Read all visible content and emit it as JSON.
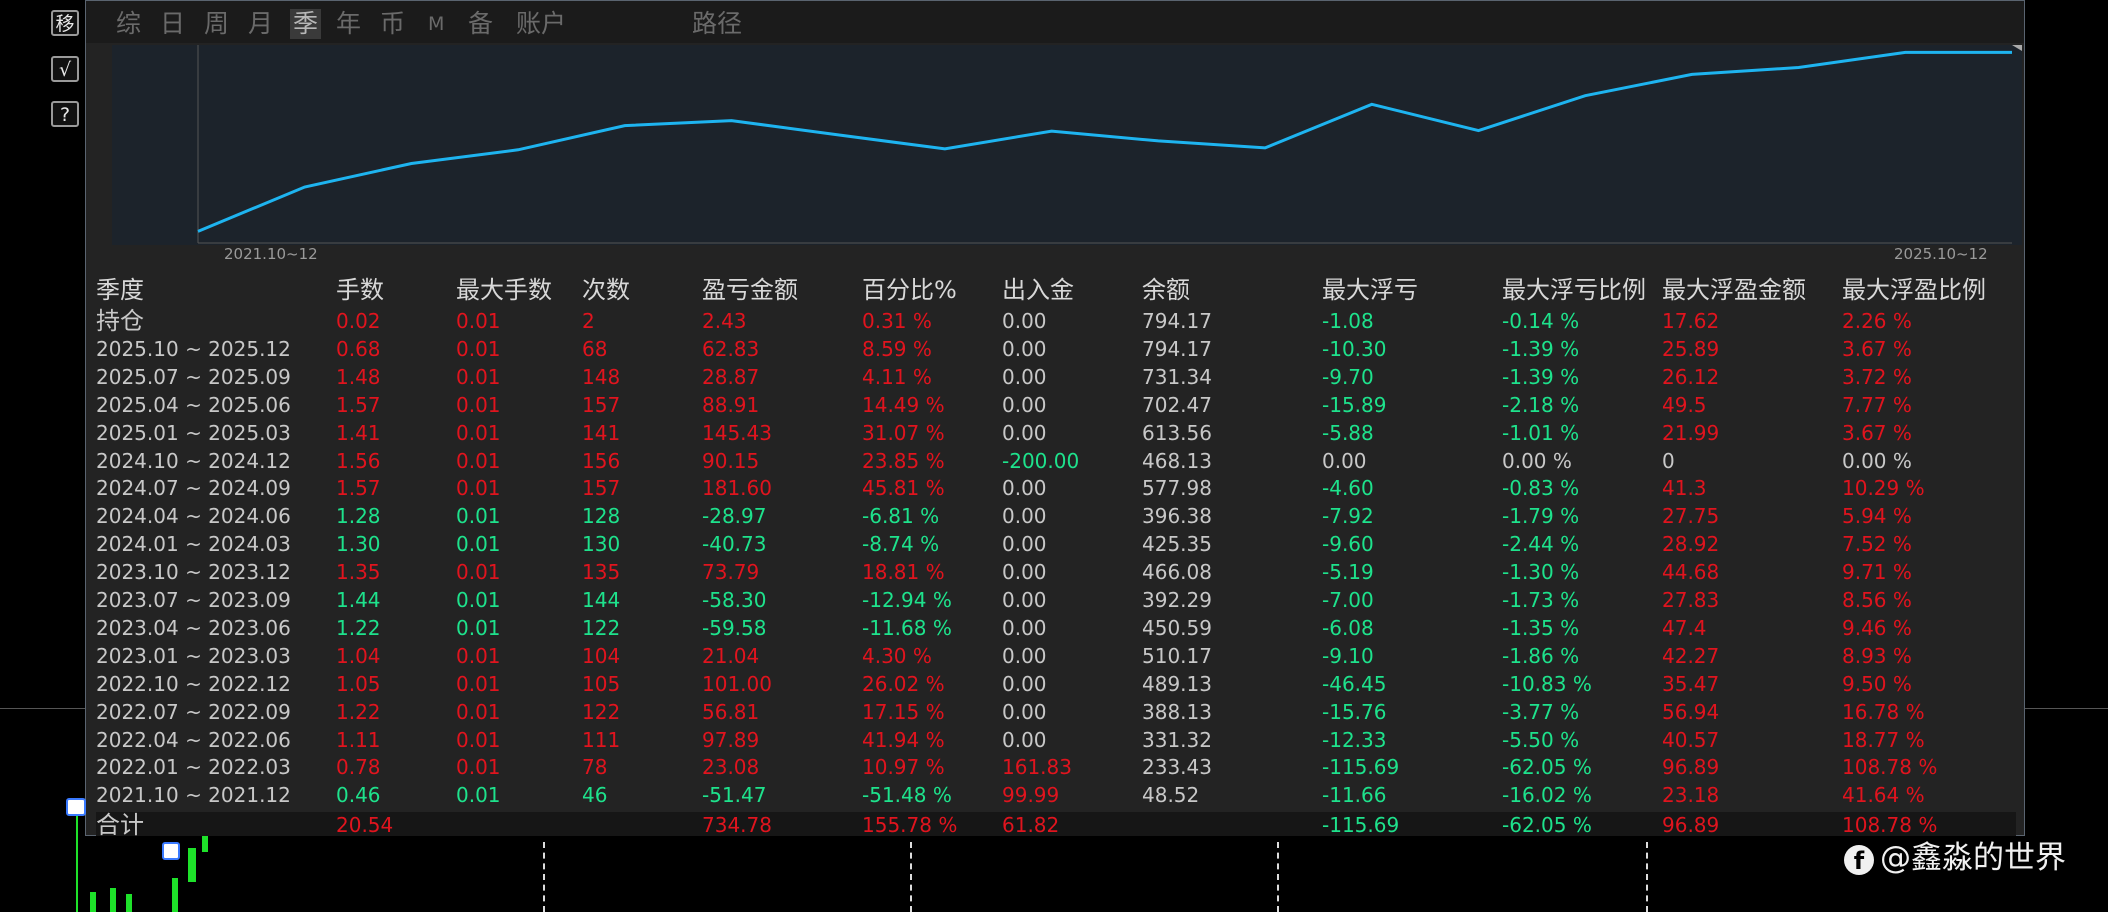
{
  "sidebar": {
    "buttons": [
      "移",
      "√",
      "?"
    ]
  },
  "toolbar": {
    "items": [
      "综",
      "日",
      "周",
      "月",
      "季",
      "年",
      "币",
      "M",
      "备",
      "账户",
      "路径"
    ],
    "active": "季"
  },
  "chart_data": {
    "type": "line",
    "start_label": "2021.10~12",
    "end_label": "2025.10~12",
    "color": "#1eb4f0",
    "x": [
      "2021.10",
      "2022.01",
      "2022.04",
      "2022.07",
      "2022.10",
      "2023.01",
      "2023.04",
      "2023.07",
      "2023.10",
      "2024.01",
      "2024.04",
      "2024.07",
      "2024.10",
      "2025.01",
      "2025.04",
      "2025.07",
      "2025.10",
      "持仓"
    ],
    "values": [
      48.52,
      233.43,
      331.32,
      388.13,
      489.13,
      510.17,
      450.59,
      392.29,
      466.08,
      425.35,
      396.38,
      577.98,
      468.13,
      613.56,
      702.47,
      731.34,
      794.17,
      794.17
    ],
    "ylim": [
      0,
      800
    ]
  },
  "table": {
    "headers": [
      "季度",
      "手数",
      "最大手数",
      "次数",
      "盈亏金额",
      "百分比%",
      "出入金",
      "余额",
      "最大浮亏",
      "最大浮亏比例",
      "最大浮盈金额",
      "最大浮盈比例"
    ],
    "rows": [
      [
        "持仓",
        "0.02",
        "0.01",
        "2",
        "2.43",
        "0.31 %",
        "0.00",
        "794.17",
        "-1.08",
        "-0.14 %",
        "17.62",
        "2.26 %"
      ],
      [
        "2025.10 ~ 2025.12",
        "0.68",
        "0.01",
        "68",
        "62.83",
        "8.59 %",
        "0.00",
        "794.17",
        "-10.30",
        "-1.39 %",
        "25.89",
        "3.67 %"
      ],
      [
        "2025.07 ~ 2025.09",
        "1.48",
        "0.01",
        "148",
        "28.87",
        "4.11 %",
        "0.00",
        "731.34",
        "-9.70",
        "-1.39 %",
        "26.12",
        "3.72 %"
      ],
      [
        "2025.04 ~ 2025.06",
        "1.57",
        "0.01",
        "157",
        "88.91",
        "14.49 %",
        "0.00",
        "702.47",
        "-15.89",
        "-2.18 %",
        "49.5",
        "7.77 %"
      ],
      [
        "2025.01 ~ 2025.03",
        "1.41",
        "0.01",
        "141",
        "145.43",
        "31.07 %",
        "0.00",
        "613.56",
        "-5.88",
        "-1.01 %",
        "21.99",
        "3.67 %"
      ],
      [
        "2024.10 ~ 2024.12",
        "1.56",
        "0.01",
        "156",
        "90.15",
        "23.85 %",
        "-200.00",
        "468.13",
        "0.00",
        "0.00 %",
        "0",
        "0.00 %"
      ],
      [
        "2024.07 ~ 2024.09",
        "1.57",
        "0.01",
        "157",
        "181.60",
        "45.81 %",
        "0.00",
        "577.98",
        "-4.60",
        "-0.83 %",
        "41.3",
        "10.29 %"
      ],
      [
        "2024.04 ~ 2024.06",
        "1.28",
        "0.01",
        "128",
        "-28.97",
        "-6.81 %",
        "0.00",
        "396.38",
        "-7.92",
        "-1.79 %",
        "27.75",
        "5.94 %"
      ],
      [
        "2024.01 ~ 2024.03",
        "1.30",
        "0.01",
        "130",
        "-40.73",
        "-8.74 %",
        "0.00",
        "425.35",
        "-9.60",
        "-2.44 %",
        "28.92",
        "7.52 %"
      ],
      [
        "2023.10 ~ 2023.12",
        "1.35",
        "0.01",
        "135",
        "73.79",
        "18.81 %",
        "0.00",
        "466.08",
        "-5.19",
        "-1.30 %",
        "44.68",
        "9.71 %"
      ],
      [
        "2023.07 ~ 2023.09",
        "1.44",
        "0.01",
        "144",
        "-58.30",
        "-12.94 %",
        "0.00",
        "392.29",
        "-7.00",
        "-1.73 %",
        "27.83",
        "8.56 %"
      ],
      [
        "2023.04 ~ 2023.06",
        "1.22",
        "0.01",
        "122",
        "-59.58",
        "-11.68 %",
        "0.00",
        "450.59",
        "-6.08",
        "-1.35 %",
        "47.4",
        "9.46 %"
      ],
      [
        "2023.01 ~ 2023.03",
        "1.04",
        "0.01",
        "104",
        "21.04",
        "4.30 %",
        "0.00",
        "510.17",
        "-9.10",
        "-1.86 %",
        "42.27",
        "8.93 %"
      ],
      [
        "2022.10 ~ 2022.12",
        "1.05",
        "0.01",
        "105",
        "101.00",
        "26.02 %",
        "0.00",
        "489.13",
        "-46.45",
        "-10.83 %",
        "35.47",
        "9.50 %"
      ],
      [
        "2022.07 ~ 2022.09",
        "1.22",
        "0.01",
        "122",
        "56.81",
        "17.15 %",
        "0.00",
        "388.13",
        "-15.76",
        "-3.77 %",
        "56.94",
        "16.78 %"
      ],
      [
        "2022.04 ~ 2022.06",
        "1.11",
        "0.01",
        "111",
        "97.89",
        "41.94 %",
        "0.00",
        "331.32",
        "-12.33",
        "-5.50 %",
        "40.57",
        "18.77 %"
      ],
      [
        "2022.01 ~ 2022.03",
        "0.78",
        "0.01",
        "78",
        "23.08",
        "10.97 %",
        "161.83",
        "233.43",
        "-115.69",
        "-62.05 %",
        "96.89",
        "108.78 %"
      ],
      [
        "2021.10 ~ 2021.12",
        "0.46",
        "0.01",
        "46",
        "-51.47",
        "-51.48 %",
        "99.99",
        "48.52",
        "-11.66",
        "-16.02 %",
        "23.18",
        "41.64 %"
      ]
    ],
    "total": [
      "合计",
      "20.54",
      "",
      "",
      "734.78",
      "155.78 %",
      "61.82",
      "",
      "-115.69",
      "-62.05 %",
      "96.89",
      "108.78 %"
    ]
  },
  "watermark": {
    "icon": "facebook-icon",
    "text": "@鑫淼的世界"
  }
}
